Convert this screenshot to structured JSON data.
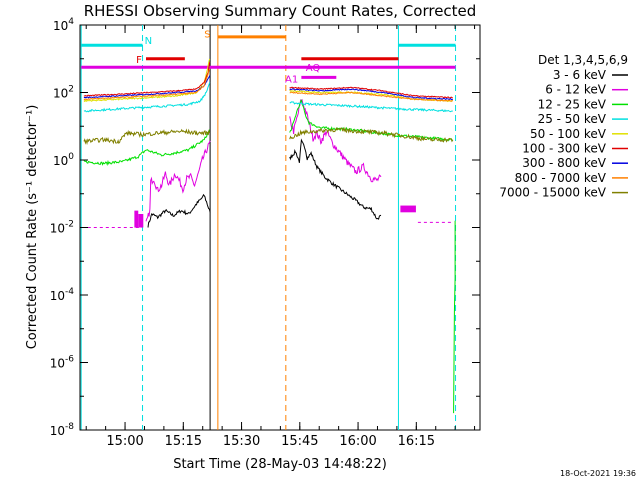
{
  "chart_data": {
    "type": "line",
    "title": "RHESSI Observing Summary Count Rates, Corrected",
    "xlabel": "Start Time (28-May-03 14:48:22)",
    "ylabel": "Corrected Count Rate (s⁻¹ detector⁻¹)",
    "x_unit": "minutes after 14:48:22",
    "xlim": [
      0,
      103
    ],
    "ylog": true,
    "ylim_exp": [
      -8,
      4
    ],
    "x_ticks": [
      {
        "label": "15:00",
        "x": 11.6
      },
      {
        "label": "15:15",
        "x": 26.6
      },
      {
        "label": "15:30",
        "x": 41.6
      },
      {
        "label": "15:45",
        "x": 56.6
      },
      {
        "label": "16:00",
        "x": 71.6
      },
      {
        "label": "16:15",
        "x": 86.6
      }
    ],
    "y_ticks": [
      {
        "base": "10",
        "exp": "4",
        "e": 4
      },
      {
        "base": "10",
        "exp": "2",
        "e": 2
      },
      {
        "base": "10",
        "exp": "0",
        "e": 0
      },
      {
        "base": "10",
        "exp": "-2",
        "e": -2
      },
      {
        "base": "10",
        "exp": "-4",
        "e": -4
      },
      {
        "base": "10",
        "exp": "-6",
        "e": -6
      },
      {
        "base": "10",
        "exp": "-8",
        "e": -8
      }
    ],
    "legend": {
      "title": "Det 1,3,4,5,6,9",
      "placement": "right"
    },
    "series": [
      {
        "name": "3 - 6 keV",
        "color": "#000000",
        "noise": 0.05,
        "segments": [
          [
            [
              17.5,
              -1.95
            ],
            [
              18.5,
              -1.6
            ],
            [
              20,
              -1.7
            ],
            [
              22,
              -1.5
            ],
            [
              24,
              -1.65
            ],
            [
              26,
              -1.5
            ],
            [
              28,
              -1.6
            ],
            [
              30,
              -1.3
            ],
            [
              32,
              -1.05
            ],
            [
              33.5,
              -1.55
            ]
          ],
          [
            [
              54,
              0.05
            ],
            [
              55.5,
              0.25
            ],
            [
              56.5,
              -0.05
            ],
            [
              57,
              0.55
            ],
            [
              58,
              0.35
            ],
            [
              58.5,
              0.05
            ],
            [
              59.5,
              0.2
            ],
            [
              61,
              -0.2
            ],
            [
              63,
              -0.5
            ],
            [
              65,
              -0.7
            ],
            [
              68,
              -0.95
            ],
            [
              71,
              -1.2
            ],
            [
              73,
              -1.4
            ],
            [
              75,
              -1.45
            ],
            [
              76.5,
              -1.75
            ],
            [
              77.5,
              -1.65
            ]
          ]
        ]
      },
      {
        "name": "6 - 12 keV",
        "color": "#e000e0",
        "noise": 0.1,
        "segments": [
          [
            [
              17,
              -1.9
            ],
            [
              18,
              -1.5
            ],
            [
              18.2,
              -0.65
            ],
            [
              19,
              -0.55
            ],
            [
              20,
              -0.9
            ],
            [
              21,
              -0.75
            ],
            [
              22,
              -0.4
            ],
            [
              23,
              -0.75
            ],
            [
              24.5,
              -0.4
            ],
            [
              25.5,
              -0.6
            ],
            [
              26.5,
              -0.85
            ],
            [
              27.5,
              -0.55
            ],
            [
              28.5,
              -0.5
            ],
            [
              29.5,
              -0.75
            ],
            [
              30.5,
              -0.4
            ],
            [
              31.5,
              0
            ],
            [
              33,
              0.4
            ],
            [
              33.6,
              0.55
            ]
          ],
          [
            [
              54,
              1.2
            ],
            [
              55,
              0.85
            ],
            [
              56,
              1.3
            ],
            [
              57,
              1.8
            ],
            [
              58,
              1.5
            ],
            [
              59,
              1.1
            ],
            [
              60,
              0.65
            ],
            [
              61,
              0.8
            ],
            [
              62,
              0.55
            ],
            [
              63.5,
              0.85
            ],
            [
              65,
              0.5
            ],
            [
              67,
              0.2
            ],
            [
              69,
              -0.1
            ],
            [
              71,
              -0.35
            ],
            [
              73,
              -0.2
            ],
            [
              75,
              -0.55
            ],
            [
              76.5,
              -0.6
            ],
            [
              77.5,
              -0.5
            ]
          ]
        ]
      },
      {
        "name": "12 - 25 keV",
        "color": "#00e000",
        "noise": 0.04,
        "segments": [
          [
            [
              1,
              -0.05
            ],
            [
              6,
              -0.1
            ],
            [
              11,
              -0.05
            ],
            [
              15,
              0.1
            ],
            [
              17,
              0.3
            ],
            [
              21,
              0.15
            ],
            [
              24,
              0.2
            ],
            [
              28,
              0.3
            ],
            [
              30,
              0.45
            ],
            [
              32,
              0.6
            ],
            [
              33.4,
              0.9
            ]
          ],
          [
            [
              54,
              0.8
            ],
            [
              55,
              1.1
            ],
            [
              56,
              1.5
            ],
            [
              57,
              1.75
            ],
            [
              58,
              1.35
            ],
            [
              59,
              1.1
            ],
            [
              62,
              0.95
            ],
            [
              70,
              0.9
            ],
            [
              77,
              0.8
            ],
            [
              80,
              0.75
            ],
            [
              85,
              0.7
            ],
            [
              90,
              0.65
            ],
            [
              96,
              0.6
            ]
          ]
        ]
      },
      {
        "name": "25 - 50 keV",
        "color": "#00e0e0",
        "noise": 0.03,
        "segments": [
          [
            [
              1,
              1.45
            ],
            [
              8,
              1.5
            ],
            [
              15,
              1.55
            ],
            [
              22,
              1.6
            ],
            [
              28,
              1.65
            ],
            [
              31,
              1.75
            ],
            [
              32.5,
              2.0
            ],
            [
              33.4,
              2.3
            ]
          ],
          [
            [
              54,
              1.7
            ],
            [
              60,
              1.65
            ],
            [
              70,
              1.6
            ],
            [
              77,
              1.55
            ],
            [
              85,
              1.5
            ],
            [
              96,
              1.45
            ]
          ]
        ]
      },
      {
        "name": "50 - 100 keV",
        "color": "#e0e000",
        "noise": 0.02,
        "segments": [
          [
            [
              1,
              1.75
            ],
            [
              10,
              1.8
            ],
            [
              18,
              1.85
            ],
            [
              25,
              1.9
            ],
            [
              30,
              2.0
            ],
            [
              32,
              2.3
            ],
            [
              33,
              2.8
            ],
            [
              33.4,
              3.0
            ]
          ],
          [
            [
              54,
              2.05
            ],
            [
              62,
              2.0
            ],
            [
              70,
              2.0
            ],
            [
              78,
              1.95
            ],
            [
              86,
              1.8
            ],
            [
              96,
              1.75
            ]
          ]
        ]
      },
      {
        "name": "100 - 300 keV",
        "color": "#e00000",
        "noise": 0.015,
        "segments": [
          [
            [
              1,
              1.9
            ],
            [
              10,
              1.95
            ],
            [
              18,
              2.0
            ],
            [
              25,
              2.05
            ],
            [
              30,
              2.1
            ],
            [
              32,
              2.3
            ],
            [
              33,
              2.6
            ],
            [
              33.4,
              2.9
            ]
          ],
          [
            [
              54,
              2.15
            ],
            [
              62,
              2.1
            ],
            [
              70,
              2.15
            ],
            [
              78,
              2.05
            ],
            [
              86,
              1.9
            ],
            [
              96,
              1.85
            ]
          ]
        ]
      },
      {
        "name": "300 - 800 keV",
        "color": "#0000e0",
        "noise": 0.015,
        "segments": [
          [
            [
              1,
              1.85
            ],
            [
              10,
              1.9
            ],
            [
              18,
              1.95
            ],
            [
              25,
              2.0
            ],
            [
              30,
              2.05
            ],
            [
              32,
              2.2
            ],
            [
              33.4,
              2.5
            ]
          ],
          [
            [
              54,
              2.1
            ],
            [
              62,
              2.05
            ],
            [
              70,
              2.1
            ],
            [
              78,
              2.0
            ],
            [
              86,
              1.85
            ],
            [
              96,
              1.8
            ]
          ]
        ]
      },
      {
        "name": "800 - 7000 keV",
        "color": "#ff8000",
        "noise": 0.015,
        "segments": [
          [
            [
              1,
              1.8
            ],
            [
              10,
              1.85
            ],
            [
              18,
              1.9
            ],
            [
              25,
              1.95
            ],
            [
              30,
              2.0
            ],
            [
              32,
              2.2
            ],
            [
              33.4,
              2.7
            ]
          ],
          [
            [
              54,
              2.0
            ],
            [
              62,
              1.95
            ],
            [
              70,
              2.0
            ],
            [
              78,
              1.9
            ],
            [
              86,
              1.8
            ],
            [
              96,
              1.75
            ]
          ]
        ]
      },
      {
        "name": "7000 - 15000 keV",
        "color": "#808000",
        "noise": 0.06,
        "segments": [
          [
            [
              1,
              0.55
            ],
            [
              6,
              0.6
            ],
            [
              10,
              0.55
            ],
            [
              12,
              0.8
            ],
            [
              16,
              0.75
            ],
            [
              20,
              0.8
            ],
            [
              26,
              0.85
            ],
            [
              30,
              0.8
            ],
            [
              33.4,
              0.8
            ]
          ],
          [
            [
              54,
              0.65
            ],
            [
              57,
              0.8
            ],
            [
              60,
              0.85
            ],
            [
              66,
              0.9
            ],
            [
              72,
              0.85
            ],
            [
              78,
              0.8
            ],
            [
              84,
              0.7
            ],
            [
              90,
              0.6
            ],
            [
              96,
              0.6
            ]
          ]
        ]
      }
    ],
    "extra_traces": [
      {
        "color": "#e000e0",
        "dashed": true,
        "points": [
          [
            2,
            -2
          ],
          [
            16,
            -2
          ]
        ]
      },
      {
        "color": "#e000e0",
        "dashed": true,
        "points": [
          [
            87,
            -1.85
          ],
          [
            96,
            -1.85
          ]
        ]
      },
      {
        "color": "#00e000",
        "dashed": false,
        "points": [
          [
            96.2,
            -7.5
          ],
          [
            96.4,
            -4.5
          ],
          [
            96.6,
            -3.5
          ],
          [
            96.6,
            -1.8
          ]
        ]
      }
    ],
    "blocks": [
      {
        "color": "#e000e0",
        "x0": 14,
        "x1": 15,
        "y_hi": -1.5,
        "y_lo": -2.0
      },
      {
        "color": "#e000e0",
        "x0": 15,
        "x1": 16.3,
        "y_hi": -1.6,
        "y_lo": -2.0
      },
      {
        "color": "#e000e0",
        "x0": 82.5,
        "x1": 86.5,
        "y_hi": -1.35,
        "y_lo": -1.55
      }
    ],
    "vlines": [
      {
        "x": 0.3,
        "color": "#00e0e0",
        "dashed": false
      },
      {
        "x": 16.1,
        "color": "#00e0e0",
        "dashed": true
      },
      {
        "x": 33.5,
        "color": "#000000",
        "dashed": false
      },
      {
        "x": 35.5,
        "color": "#ff8000",
        "dashed": false
      },
      {
        "x": 53.0,
        "color": "#ff8000",
        "dashed": true
      },
      {
        "x": 82.0,
        "color": "#00e0e0",
        "dashed": false
      },
      {
        "x": 96.7,
        "color": "#00e0e0",
        "dashed": true
      }
    ],
    "flags": [
      {
        "x0": 0.3,
        "x1": 16.1,
        "y": 3.4,
        "color": "#00e0e0"
      },
      {
        "x0": 82.0,
        "x1": 96.7,
        "y": 3.4,
        "color": "#00e0e0"
      },
      {
        "x0": 17.0,
        "x1": 27.0,
        "y": 3.0,
        "color": "#e00000"
      },
      {
        "x0": 57.0,
        "x1": 82.0,
        "y": 3.0,
        "color": "#e00000"
      },
      {
        "x0": 35.5,
        "x1": 53.0,
        "y": 3.65,
        "color": "#ff8000"
      },
      {
        "x0": 0.3,
        "x1": 96.7,
        "y": 2.75,
        "color": "#e000e0"
      },
      {
        "x0": 57.0,
        "x1": 66.0,
        "y": 2.45,
        "color": "#e000e0"
      }
    ],
    "annotations": [
      {
        "text": "N",
        "x": 17.6,
        "y": 3.55,
        "color": "#00e0e0"
      },
      {
        "text": "F",
        "x": 15.2,
        "y": 3.0,
        "color": "#e00000"
      },
      {
        "text": "S",
        "x": 32.8,
        "y": 3.75,
        "color": "#ff8000"
      },
      {
        "text": "AQ",
        "x": 60.0,
        "y": 2.75,
        "color": "#e000e0"
      },
      {
        "text": "A1",
        "x": 54.5,
        "y": 2.42,
        "color": "#e000e0"
      }
    ]
  },
  "footer": {
    "timestamp": "18-Oct-2021 19:36"
  }
}
